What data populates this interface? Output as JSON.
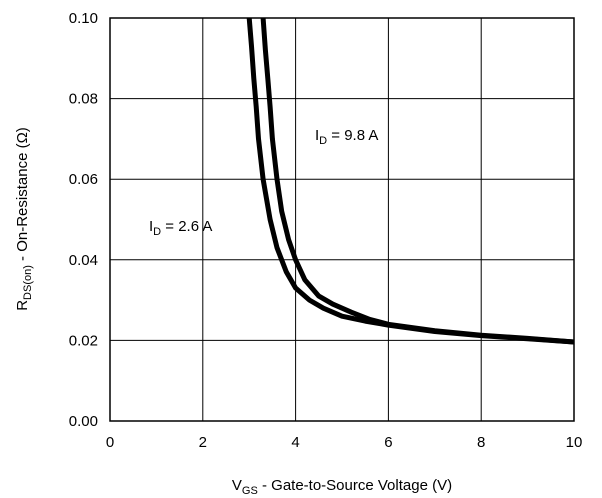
{
  "chart_data": {
    "type": "line",
    "xlabel": {
      "main": "V",
      "sub": "GS",
      "rest": " - Gate-to-Source Voltage (V)"
    },
    "ylabel": {
      "main": "R",
      "sub": "DS(on)",
      "rest": " - On-Resistance (Ω)"
    },
    "xlim": [
      0,
      10
    ],
    "ylim": [
      0,
      0.1
    ],
    "x_ticks": [
      "0",
      "2",
      "4",
      "6",
      "8",
      "10"
    ],
    "y_ticks": [
      "0.00",
      "0.02",
      "0.04",
      "0.06",
      "0.08",
      "0.10"
    ],
    "grid": true,
    "legend": "none",
    "annotations": [
      {
        "main": "I",
        "sub": "D",
        "rest": " = 9.8 A"
      },
      {
        "main": "I",
        "sub": "D",
        "rest": " = 2.6 A"
      }
    ],
    "series": [
      {
        "x": [
          3.0,
          3.05,
          3.1,
          3.15,
          3.2,
          3.3,
          3.45,
          3.6,
          3.8,
          4.0,
          4.3,
          4.6,
          5.0,
          5.5,
          6.0,
          7.0,
          8.0,
          9.0,
          10.0
        ],
        "y": [
          0.1,
          0.093,
          0.085,
          0.078,
          0.07,
          0.06,
          0.05,
          0.043,
          0.037,
          0.033,
          0.03,
          0.028,
          0.026,
          0.0248,
          0.0238,
          0.0222,
          0.0212,
          0.0204,
          0.0196
        ]
      },
      {
        "x": [
          3.3,
          3.35,
          3.4,
          3.45,
          3.5,
          3.6,
          3.7,
          3.85,
          4.0,
          4.2,
          4.5,
          4.8,
          5.2,
          5.6,
          6.0,
          7.0,
          8.0,
          9.0,
          10.0
        ],
        "y": [
          0.1,
          0.092,
          0.085,
          0.078,
          0.07,
          0.06,
          0.052,
          0.045,
          0.04,
          0.035,
          0.031,
          0.029,
          0.027,
          0.0252,
          0.024,
          0.0224,
          0.0213,
          0.0205,
          0.0196
        ]
      }
    ]
  }
}
